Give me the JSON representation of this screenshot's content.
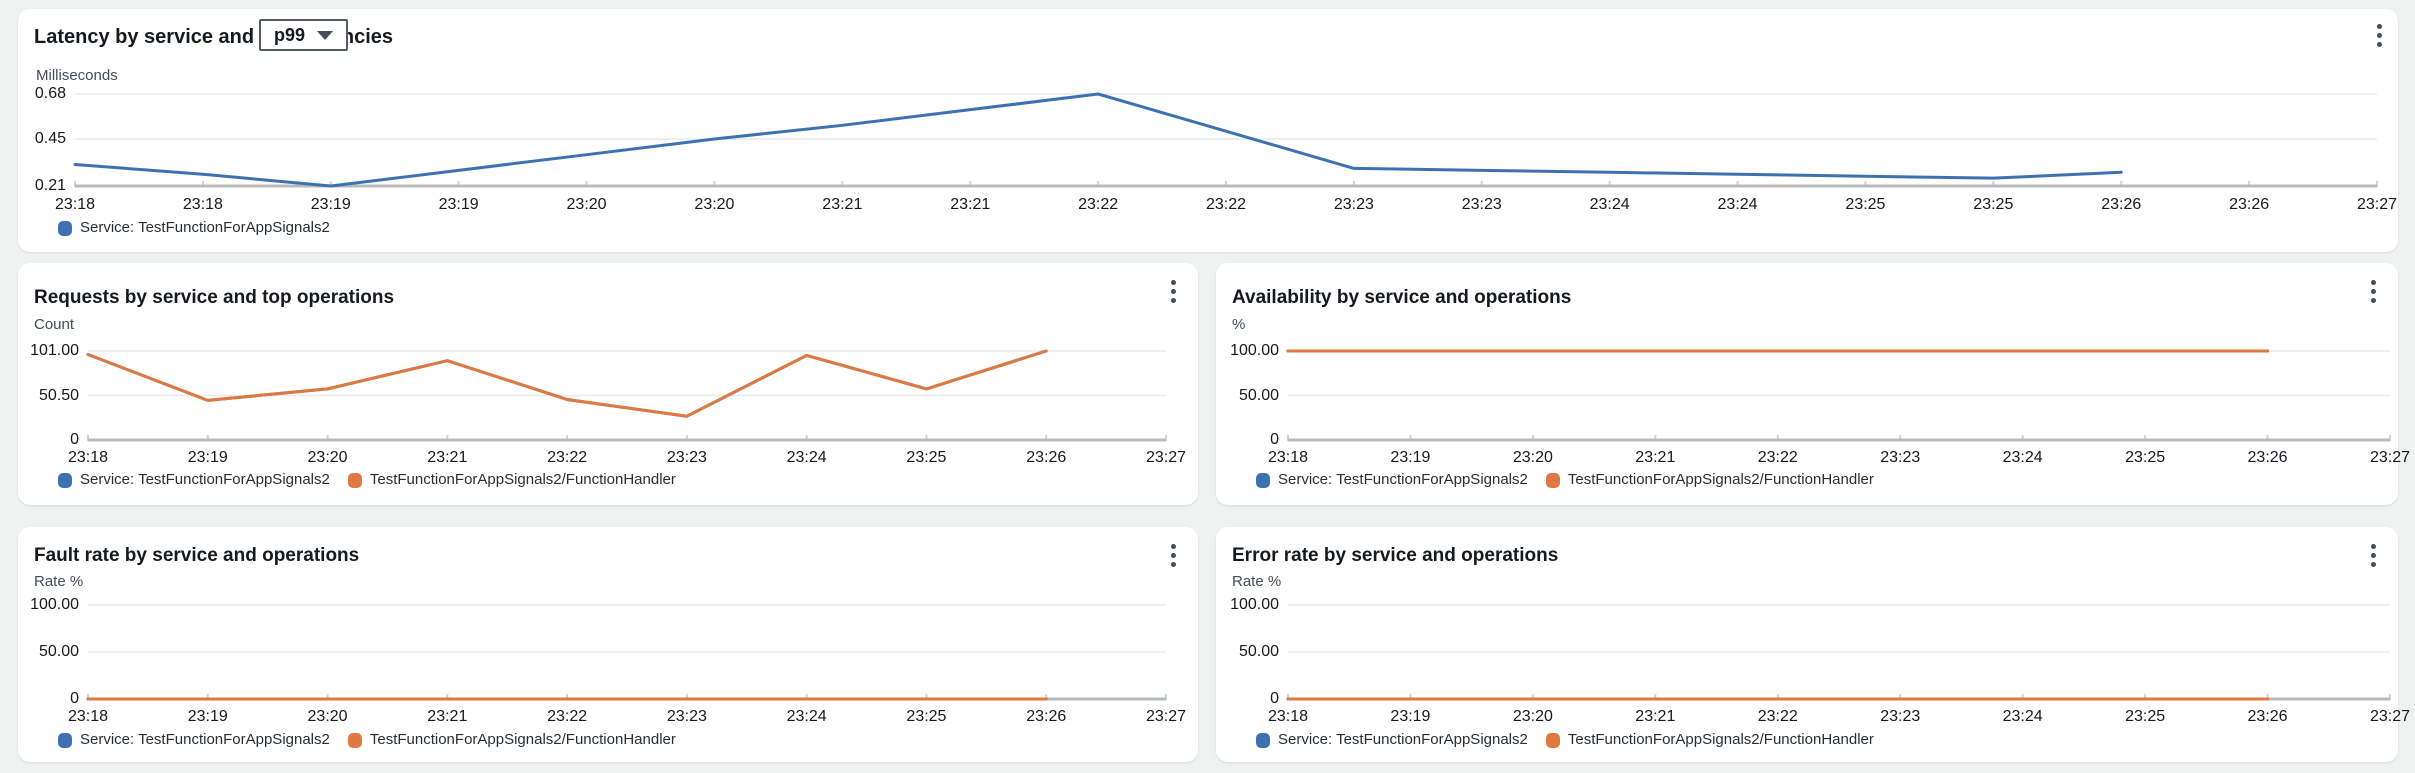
{
  "colors": {
    "background": "#f0f1f1",
    "card": "#ffffff",
    "grid": "#e8eaec",
    "axis": "#b8bbbe",
    "tick": "#ced3d7",
    "series_blue": "#3d72b2",
    "series_orange": "#e07941",
    "title_text": "#16191f",
    "label_text": "#414d5c"
  },
  "chart_data": [
    {
      "key": "latency",
      "type": "line",
      "title": "Latency by service and dependencies",
      "stat_selector": "p99",
      "ylabel": "Milliseconds",
      "y_ticks": [
        "0.68",
        "0.45",
        "0.21"
      ],
      "y_tick_values": [
        0.68,
        0.45,
        0.21
      ],
      "ylim": [
        0.21,
        0.68
      ],
      "grid": true,
      "legend_position": "bottom",
      "x_ticks": [
        "23:18",
        "23:18",
        "23:19",
        "23:19",
        "23:20",
        "23:20",
        "23:21",
        "23:21",
        "23:22",
        "23:22",
        "23:23",
        "23:23",
        "23:24",
        "23:24",
        "23:25",
        "23:25",
        "23:26",
        "23:26",
        "23:27"
      ],
      "series": [
        {
          "name": "Service: TestFunctionForAppSignals2",
          "color": "#3d72b2",
          "values": [
            0.32,
            0.27,
            0.21,
            0.29,
            0.37,
            0.45,
            0.52,
            0.6,
            0.68,
            0.49,
            0.3,
            0.29,
            0.28,
            0.27,
            0.26,
            0.25,
            0.28
          ]
        }
      ]
    },
    {
      "key": "requests",
      "type": "line",
      "title": "Requests by service and top operations",
      "ylabel": "Count",
      "y_ticks": [
        "101.00",
        "50.50",
        "0"
      ],
      "y_tick_values": [
        101,
        50.5,
        0
      ],
      "ylim": [
        0,
        101
      ],
      "grid": true,
      "legend_position": "bottom",
      "x_ticks": [
        "23:18",
        "23:19",
        "23:20",
        "23:21",
        "23:22",
        "23:23",
        "23:24",
        "23:25",
        "23:26",
        "23:27"
      ],
      "series": [
        {
          "name": "Service: TestFunctionForAppSignals2",
          "color": "#3d72b2",
          "values": [
            97,
            45,
            58,
            90,
            46,
            27,
            96,
            58,
            101
          ]
        },
        {
          "name": "TestFunctionForAppSignals2/FunctionHandler",
          "color": "#e07941",
          "values": [
            97,
            45,
            58,
            90,
            46,
            27,
            96,
            58,
            101
          ]
        }
      ]
    },
    {
      "key": "availability",
      "type": "line",
      "title": "Availability by service and operations",
      "ylabel": "%",
      "y_ticks": [
        "100.00",
        "50.00",
        "0"
      ],
      "y_tick_values": [
        100,
        50,
        0
      ],
      "ylim": [
        0,
        100
      ],
      "grid": true,
      "legend_position": "bottom",
      "x_ticks": [
        "23:18",
        "23:19",
        "23:20",
        "23:21",
        "23:22",
        "23:23",
        "23:24",
        "23:25",
        "23:26",
        "23:27"
      ],
      "series": [
        {
          "name": "Service: TestFunctionForAppSignals2",
          "color": "#3d72b2",
          "values": [
            100,
            100,
            100,
            100,
            100,
            100,
            100,
            100,
            100
          ]
        },
        {
          "name": "TestFunctionForAppSignals2/FunctionHandler",
          "color": "#e07941",
          "values": [
            100,
            100,
            100,
            100,
            100,
            100,
            100,
            100,
            100
          ]
        }
      ]
    },
    {
      "key": "fault_rate",
      "type": "line",
      "title": "Fault rate by service and operations",
      "ylabel": "Rate %",
      "y_ticks": [
        "100.00",
        "50.00",
        "0"
      ],
      "y_tick_values": [
        100,
        50,
        0
      ],
      "ylim": [
        0,
        100
      ],
      "grid": true,
      "legend_position": "bottom",
      "x_ticks": [
        "23:18",
        "23:19",
        "23:20",
        "23:21",
        "23:22",
        "23:23",
        "23:24",
        "23:25",
        "23:26",
        "23:27"
      ],
      "series": [
        {
          "name": "Service: TestFunctionForAppSignals2",
          "color": "#3d72b2",
          "values": [
            0,
            0,
            0,
            0,
            0,
            0,
            0,
            0,
            0
          ]
        },
        {
          "name": "TestFunctionForAppSignals2/FunctionHandler",
          "color": "#e07941",
          "values": [
            0,
            0,
            0,
            0,
            0,
            0,
            0,
            0,
            0
          ]
        }
      ]
    },
    {
      "key": "error_rate",
      "type": "line",
      "title": "Error rate by service and operations",
      "ylabel": "Rate %",
      "y_ticks": [
        "100.00",
        "50.00",
        "0"
      ],
      "y_tick_values": [
        100,
        50,
        0
      ],
      "ylim": [
        0,
        100
      ],
      "grid": true,
      "legend_position": "bottom",
      "x_ticks": [
        "23:18",
        "23:19",
        "23:20",
        "23:21",
        "23:22",
        "23:23",
        "23:24",
        "23:25",
        "23:26",
        "23:27"
      ],
      "series": [
        {
          "name": "Service: TestFunctionForAppSignals2",
          "color": "#3d72b2",
          "values": [
            0,
            0,
            0,
            0,
            0,
            0,
            0,
            0,
            0
          ]
        },
        {
          "name": "TestFunctionForAppSignals2/FunctionHandler",
          "color": "#e07941",
          "values": [
            0,
            0,
            0,
            0,
            0,
            0,
            0,
            0,
            0
          ]
        }
      ]
    }
  ]
}
